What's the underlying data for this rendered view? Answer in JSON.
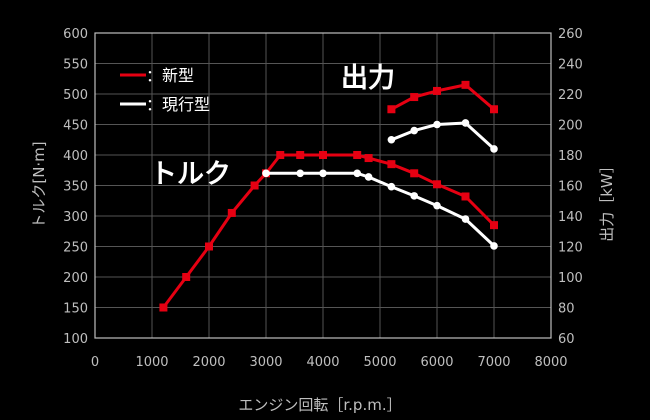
{
  "chart_data": {
    "type": "line",
    "xlabel": "エンジン回転［r.p.m.］",
    "ylabel_left": "トルク[N·m]",
    "ylabel_right": "出力［kW］",
    "xlim": [
      0,
      8000
    ],
    "ylim_left": [
      100,
      600
    ],
    "ylim_right": [
      60,
      260
    ],
    "x_ticks": [
      0,
      1000,
      2000,
      3000,
      4000,
      5000,
      6000,
      7000,
      8000
    ],
    "y_left_ticks": [
      100,
      150,
      200,
      250,
      300,
      350,
      400,
      450,
      500,
      550,
      600
    ],
    "y_right_ticks": [
      60,
      80,
      100,
      120,
      140,
      160,
      180,
      200,
      220,
      240,
      260
    ],
    "grid": true,
    "annotations": {
      "torque": "トルク",
      "power": "出力"
    },
    "legend": {
      "placement": "top-left",
      "entries": [
        {
          "label": "：新型",
          "color": "#e60012"
        },
        {
          "label": "：現行型",
          "color": "#ffffff"
        }
      ]
    },
    "series": [
      {
        "name": "新型",
        "group": "torque",
        "axis": "left",
        "color": "#e60012",
        "marker": "square",
        "x": [
          1200,
          1600,
          2000,
          2400,
          2800,
          3000,
          3250,
          3600,
          4000,
          4600,
          4800,
          5200,
          5600,
          6000,
          6500,
          7000
        ],
        "y": [
          150,
          200,
          250,
          305,
          350,
          370,
          400,
          400,
          400,
          400,
          395,
          385,
          370,
          352,
          332,
          285
        ]
      },
      {
        "name": "現行型",
        "group": "torque",
        "axis": "left",
        "color": "#ffffff",
        "marker": "circle",
        "x": [
          3000,
          3600,
          4000,
          4600,
          4800,
          5200,
          5600,
          6000,
          6500,
          7000
        ],
        "y": [
          370,
          370,
          370,
          370,
          364,
          348,
          333,
          317,
          295,
          251
        ]
      },
      {
        "name": "新型",
        "group": "power",
        "axis": "right",
        "color": "#e60012",
        "marker": "square",
        "x": [
          5200,
          5600,
          6000,
          6500,
          7000
        ],
        "y": [
          210,
          218,
          222,
          226,
          210
        ]
      },
      {
        "name": "現行型",
        "group": "power",
        "axis": "right",
        "color": "#ffffff",
        "marker": "circle",
        "x": [
          5200,
          5600,
          6000,
          6500,
          7000
        ],
        "y": [
          190,
          196,
          200,
          201,
          184
        ]
      }
    ]
  }
}
